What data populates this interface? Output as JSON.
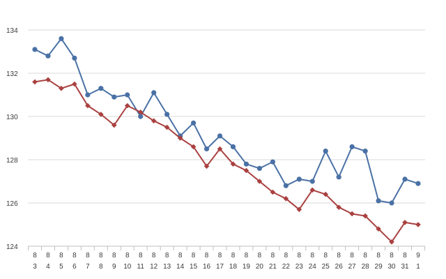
{
  "chart_data": {
    "type": "line",
    "title": "",
    "xlabel": "",
    "ylabel": "",
    "ylim": [
      124,
      134
    ],
    "y_ticks": [
      "124",
      "126",
      "128",
      "130",
      "132",
      "134"
    ],
    "grid": "horizontal",
    "categories": [
      {
        "month": "8",
        "day": "3"
      },
      {
        "month": "8",
        "day": "4"
      },
      {
        "month": "8",
        "day": "5"
      },
      {
        "month": "8",
        "day": "6"
      },
      {
        "month": "8",
        "day": "7"
      },
      {
        "month": "8",
        "day": "8"
      },
      {
        "month": "8",
        "day": "9"
      },
      {
        "month": "8",
        "day": "10"
      },
      {
        "month": "8",
        "day": "11"
      },
      {
        "month": "8",
        "day": "12"
      },
      {
        "month": "8",
        "day": "13"
      },
      {
        "month": "8",
        "day": "14"
      },
      {
        "month": "8",
        "day": "15"
      },
      {
        "month": "8",
        "day": "16"
      },
      {
        "month": "8",
        "day": "17"
      },
      {
        "month": "8",
        "day": "18"
      },
      {
        "month": "8",
        "day": "19"
      },
      {
        "month": "8",
        "day": "20"
      },
      {
        "month": "8",
        "day": "21"
      },
      {
        "month": "8",
        "day": "22"
      },
      {
        "month": "8",
        "day": "23"
      },
      {
        "month": "8",
        "day": "24"
      },
      {
        "month": "8",
        "day": "25"
      },
      {
        "month": "8",
        "day": "26"
      },
      {
        "month": "8",
        "day": "27"
      },
      {
        "month": "8",
        "day": "28"
      },
      {
        "month": "8",
        "day": "29"
      },
      {
        "month": "8",
        "day": "30"
      },
      {
        "month": "8",
        "day": "31"
      },
      {
        "month": "9",
        "day": "1"
      }
    ],
    "series": [
      {
        "color": "#4a71a5",
        "marker": "circle",
        "values": [
          133.1,
          132.8,
          133.6,
          132.7,
          131.0,
          131.3,
          130.9,
          131.0,
          130.0,
          131.1,
          130.1,
          129.1,
          129.7,
          128.5,
          129.1,
          128.6,
          127.8,
          127.6,
          127.9,
          126.8,
          127.1,
          127.0,
          128.4,
          127.2,
          128.6,
          128.4,
          126.1,
          126.0,
          127.1,
          126.9
        ]
      },
      {
        "color": "#a94140",
        "marker": "diamond",
        "values": [
          131.6,
          131.7,
          131.3,
          131.5,
          130.5,
          130.1,
          129.6,
          130.5,
          130.2,
          129.8,
          129.5,
          129.0,
          128.6,
          127.7,
          128.5,
          127.8,
          127.5,
          127.0,
          126.5,
          126.2,
          125.7,
          126.6,
          126.4,
          125.8,
          125.5,
          125.4,
          124.8,
          124.2,
          125.1,
          125.0
        ]
      }
    ]
  }
}
